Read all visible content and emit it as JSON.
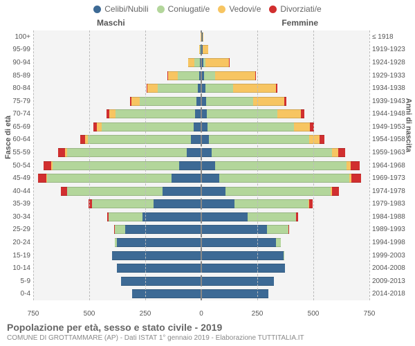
{
  "legend": {
    "items": [
      {
        "label": "Celibi/Nubili",
        "color": "#3d6a95"
      },
      {
        "label": "Coniugati/e",
        "color": "#b3d69b"
      },
      {
        "label": "Vedovi/e",
        "color": "#f7c562"
      },
      {
        "label": "Divorziati/e",
        "color": "#d12f2f"
      }
    ]
  },
  "gender": {
    "male": "Maschi",
    "female": "Femmine"
  },
  "axes": {
    "left_title": "Fasce di età",
    "right_title": "Anni di nascita",
    "x_max": 750,
    "x_ticks": [
      750,
      500,
      250,
      0,
      250,
      500,
      750
    ]
  },
  "colors": {
    "celibi": "#3d6a95",
    "coniugati": "#b3d69b",
    "vedovi": "#f7c562",
    "divorziati": "#d12f2f",
    "plot_bg": "#f4f4f4",
    "grid": "#bbbbbb"
  },
  "footer": {
    "title": "Popolazione per età, sesso e stato civile - 2019",
    "subtitle": "COMUNE DI GROTTAMMARE (AP) - Dati ISTAT 1° gennaio 2019 - Elaborazione TUTTITALIA.IT"
  },
  "rows": [
    {
      "age": "100+",
      "birth": "≤ 1918",
      "m": {
        "cel": 0,
        "con": 0,
        "ved": 1,
        "div": 0
      },
      "f": {
        "cel": 2,
        "con": 0,
        "ved": 4,
        "div": 0
      }
    },
    {
      "age": "95-99",
      "birth": "1919-1923",
      "m": {
        "cel": 1,
        "con": 2,
        "ved": 4,
        "div": 0
      },
      "f": {
        "cel": 3,
        "con": 1,
        "ved": 24,
        "div": 0
      }
    },
    {
      "age": "90-94",
      "birth": "1924-1928",
      "m": {
        "cel": 4,
        "con": 25,
        "ved": 26,
        "div": 0
      },
      "f": {
        "cel": 6,
        "con": 8,
        "ved": 105,
        "div": 1
      }
    },
    {
      "age": "85-89",
      "birth": "1929-1933",
      "m": {
        "cel": 7,
        "con": 95,
        "ved": 44,
        "div": 1
      },
      "f": {
        "cel": 10,
        "con": 48,
        "ved": 180,
        "div": 3
      }
    },
    {
      "age": "80-84",
      "birth": "1934-1938",
      "m": {
        "cel": 12,
        "con": 180,
        "ved": 45,
        "div": 3
      },
      "f": {
        "cel": 14,
        "con": 125,
        "ved": 190,
        "div": 6
      }
    },
    {
      "age": "75-79",
      "birth": "1939-1943",
      "m": {
        "cel": 18,
        "con": 255,
        "ved": 36,
        "div": 5
      },
      "f": {
        "cel": 18,
        "con": 210,
        "ved": 140,
        "div": 9
      }
    },
    {
      "age": "70-74",
      "birth": "1944-1948",
      "m": {
        "cel": 24,
        "con": 355,
        "ved": 30,
        "div": 12
      },
      "f": {
        "cel": 22,
        "con": 315,
        "ved": 105,
        "div": 14
      }
    },
    {
      "age": "65-69",
      "birth": "1949-1953",
      "m": {
        "cel": 32,
        "con": 410,
        "ved": 20,
        "div": 16
      },
      "f": {
        "cel": 26,
        "con": 385,
        "ved": 72,
        "div": 18
      }
    },
    {
      "age": "60-64",
      "birth": "1954-1958",
      "m": {
        "cel": 42,
        "con": 460,
        "ved": 14,
        "div": 22
      },
      "f": {
        "cel": 32,
        "con": 445,
        "ved": 48,
        "div": 22
      }
    },
    {
      "age": "55-59",
      "birth": "1959-1963",
      "m": {
        "cel": 62,
        "con": 535,
        "ved": 9,
        "div": 30
      },
      "f": {
        "cel": 44,
        "con": 535,
        "ved": 30,
        "div": 30
      }
    },
    {
      "age": "50-54",
      "birth": "1964-1968",
      "m": {
        "cel": 95,
        "con": 565,
        "ved": 6,
        "div": 36
      },
      "f": {
        "cel": 60,
        "con": 585,
        "ved": 18,
        "div": 42
      }
    },
    {
      "age": "45-49",
      "birth": "1969-1973",
      "m": {
        "cel": 130,
        "con": 555,
        "ved": 4,
        "div": 36
      },
      "f": {
        "cel": 78,
        "con": 580,
        "ved": 10,
        "div": 42
      }
    },
    {
      "age": "40-44",
      "birth": "1974-1978",
      "m": {
        "cel": 170,
        "con": 425,
        "ved": 2,
        "div": 26
      },
      "f": {
        "cel": 105,
        "con": 470,
        "ved": 5,
        "div": 30
      }
    },
    {
      "age": "35-39",
      "birth": "1979-1983",
      "m": {
        "cel": 210,
        "con": 275,
        "ved": 1,
        "div": 14
      },
      "f": {
        "cel": 145,
        "con": 330,
        "ved": 2,
        "div": 16
      }
    },
    {
      "age": "30-34",
      "birth": "1984-1988",
      "m": {
        "cel": 260,
        "con": 150,
        "ved": 0,
        "div": 7
      },
      "f": {
        "cel": 205,
        "con": 215,
        "ved": 1,
        "div": 9
      }
    },
    {
      "age": "25-29",
      "birth": "1989-1993",
      "m": {
        "cel": 335,
        "con": 48,
        "ved": 0,
        "div": 2
      },
      "f": {
        "cel": 290,
        "con": 95,
        "ved": 0,
        "div": 3
      }
    },
    {
      "age": "20-24",
      "birth": "1994-1998",
      "m": {
        "cel": 375,
        "con": 8,
        "ved": 0,
        "div": 0
      },
      "f": {
        "cel": 330,
        "con": 22,
        "ved": 0,
        "div": 0
      }
    },
    {
      "age": "15-19",
      "birth": "1999-2003",
      "m": {
        "cel": 395,
        "con": 0,
        "ved": 0,
        "div": 0
      },
      "f": {
        "cel": 365,
        "con": 1,
        "ved": 0,
        "div": 0
      }
    },
    {
      "age": "10-14",
      "birth": "2004-2008",
      "m": {
        "cel": 375,
        "con": 0,
        "ved": 0,
        "div": 0
      },
      "f": {
        "cel": 370,
        "con": 0,
        "ved": 0,
        "div": 0
      }
    },
    {
      "age": "5-9",
      "birth": "2009-2013",
      "m": {
        "cel": 355,
        "con": 0,
        "ved": 0,
        "div": 0
      },
      "f": {
        "cel": 320,
        "con": 0,
        "ved": 0,
        "div": 0
      }
    },
    {
      "age": "0-4",
      "birth": "2014-2018",
      "m": {
        "cel": 305,
        "con": 0,
        "ved": 0,
        "div": 0
      },
      "f": {
        "cel": 295,
        "con": 0,
        "ved": 0,
        "div": 0
      }
    }
  ]
}
